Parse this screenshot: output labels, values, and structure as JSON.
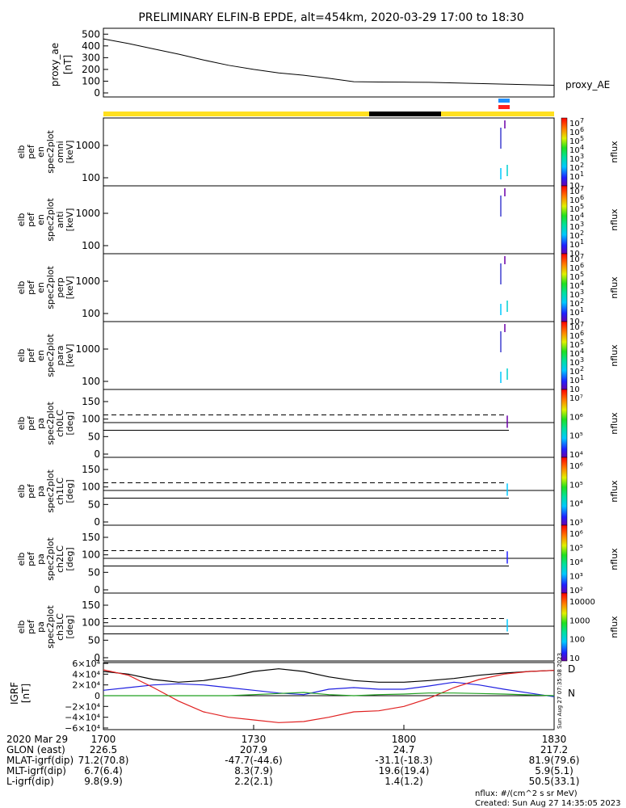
{
  "title": "PRELIMINARY ELFIN-B EPDE, alt=454km, 2020-03-29 17:00 to 18:30",
  "ae_panel": {
    "ylabel": [
      "proxy_ae",
      "[nT]"
    ],
    "yticks": [
      "500",
      "400",
      "300",
      "200",
      "100",
      "0"
    ],
    "legend": "proxy_AE"
  },
  "flags_bar": {
    "base_color": "#ffe020",
    "night_color": "#000000",
    "marker_colors": [
      "#1e90ff",
      "#ff2020"
    ]
  },
  "spec_panels": [
    {
      "ylabel": [
        "elb",
        "pef",
        "en",
        "spec2plot",
        "omni",
        "[keV]"
      ],
      "yticks": [
        "1000",
        "100"
      ],
      "zlabel": "nflux"
    },
    {
      "ylabel": [
        "elb",
        "pef",
        "en",
        "spec2plot",
        "anti",
        "[keV]"
      ],
      "yticks": [
        "1000",
        "100"
      ],
      "zlabel": "nflux"
    },
    {
      "ylabel": [
        "elb",
        "pef",
        "en",
        "spec2plot",
        "perp",
        "[keV]"
      ],
      "yticks": [
        "1000",
        "100"
      ],
      "zlabel": "nflux"
    },
    {
      "ylabel": [
        "elb",
        "pef",
        "en",
        "spec2plot",
        "para",
        "[keV]"
      ],
      "yticks": [
        "1000",
        "100"
      ],
      "zlabel": "nflux"
    }
  ],
  "spec_colorbar_labels": [
    "10",
    "10",
    "10",
    "10",
    "10",
    "10",
    "10",
    "10"
  ],
  "spec_colorbar_exps": [
    "7",
    "6",
    "5",
    "4",
    "3",
    "2",
    "1",
    ""
  ],
  "pa_panels": [
    {
      "ylabel": [
        "elb",
        "pef",
        "pa",
        "spec2plot",
        "ch0LC",
        "[deg]"
      ],
      "yticks": [
        "150",
        "100",
        "50",
        "0"
      ],
      "cb": [
        "10⁷",
        "10⁶",
        "10⁵",
        "10⁴"
      ],
      "zlabel": "nflux"
    },
    {
      "ylabel": [
        "elb",
        "pef",
        "pa",
        "spec2plot",
        "ch1LC",
        "[deg]"
      ],
      "yticks": [
        "150",
        "100",
        "50",
        "0"
      ],
      "cb": [
        "10⁶",
        "10⁵",
        "10⁴",
        "10³"
      ],
      "zlabel": "nflux"
    },
    {
      "ylabel": [
        "elb",
        "pef",
        "pa",
        "spec2plot",
        "ch2LC",
        "[deg]"
      ],
      "yticks": [
        "150",
        "100",
        "50",
        "0"
      ],
      "cb": [
        "10⁶",
        "10⁵",
        "10⁴",
        "10³",
        "10²"
      ],
      "zlabel": "nflux"
    },
    {
      "ylabel": [
        "elb",
        "pef",
        "pa",
        "spec2plot",
        "ch3LC",
        "[deg]"
      ],
      "yticks": [
        "150",
        "100",
        "50",
        "0"
      ],
      "cb": [
        "10000",
        "1000",
        "100",
        "10"
      ],
      "zlabel": "nflux"
    }
  ],
  "igrf_panel": {
    "ylabel": [
      "IGRF",
      "[nT]"
    ],
    "yticks": [
      "6×10⁴",
      "4×10⁴",
      "2×10⁴",
      "0",
      "−2×10⁴",
      "−4×10⁴",
      "−6×10⁴"
    ],
    "legend": [
      {
        "label": "D",
        "color": "#e02020"
      },
      {
        "label": "N",
        "color": "#20a020"
      }
    ],
    "stamp": "Sun Aug 27 07:35:08 2023"
  },
  "chart_data": [
    {
      "type": "line",
      "title": "PRELIMINARY ELFIN-B EPDE, alt=454km, 2020-03-29 17:00 to 18:30",
      "ylabel": "proxy_ae [nT]",
      "ylim": [
        0,
        550
      ],
      "x_minutes": [
        0,
        5,
        10,
        15,
        20,
        25,
        30,
        35,
        40,
        45,
        50,
        55,
        60,
        65,
        70,
        75,
        80,
        85,
        90
      ],
      "series": [
        {
          "name": "proxy_AE",
          "values": [
            460,
            420,
            375,
            330,
            280,
            235,
            200,
            170,
            150,
            125,
            95,
            93,
            92,
            90,
            85,
            80,
            75,
            70,
            65
          ]
        }
      ]
    },
    {
      "type": "line",
      "ylabel": "IGRF [nT]",
      "ylim": [
        -60000,
        60000
      ],
      "x_minutes": [
        0,
        5,
        10,
        15,
        20,
        25,
        30,
        35,
        40,
        45,
        50,
        55,
        60,
        65,
        70,
        75,
        80,
        85,
        90
      ],
      "series": [
        {
          "name": "total",
          "color": "#000000",
          "values": [
            45000,
            40000,
            30000,
            25000,
            28000,
            35000,
            45000,
            50000,
            45000,
            35000,
            28000,
            25000,
            25000,
            28000,
            32000,
            38000,
            42000,
            45000,
            47000
          ]
        },
        {
          "name": "",
          "color": "#2020e0",
          "values": [
            10000,
            15000,
            20000,
            22000,
            20000,
            15000,
            10000,
            5000,
            2000,
            12000,
            15000,
            12000,
            12000,
            18000,
            25000,
            20000,
            12000,
            5000,
            -2000
          ]
        },
        {
          "name": "D",
          "color": "#e02020",
          "values": [
            48000,
            38000,
            15000,
            -10000,
            -30000,
            -40000,
            -45000,
            -50000,
            -48000,
            -40000,
            -30000,
            -28000,
            -20000,
            -5000,
            15000,
            30000,
            40000,
            45000,
            47000
          ]
        },
        {
          "name": "N",
          "color": "#20a020",
          "values": [
            0,
            0,
            0,
            0,
            0,
            0,
            2000,
            4000,
            6000,
            2000,
            0,
            2000,
            3000,
            5000,
            5000,
            4000,
            3000,
            1500,
            0
          ]
        }
      ]
    }
  ],
  "x_axis": {
    "row_labels": [
      "2020 Mar 29",
      "GLON (east)",
      "MLAT-igrf(dip)",
      "MLT-igrf(dip)",
      "L-igrf(dip)"
    ],
    "columns": [
      {
        "values": [
          "1700",
          "226.5",
          "71.2(70.8)",
          "6.7(6.4)",
          "9.8(9.9)"
        ]
      },
      {
        "values": [
          "1730",
          "207.9",
          "-47.7(-44.6)",
          "8.3(7.9)",
          "2.2(2.1)"
        ]
      },
      {
        "values": [
          "1800",
          "24.7",
          "-31.1(-18.3)",
          "19.6(19.4)",
          "1.4(1.2)"
        ]
      },
      {
        "values": [
          "1830",
          "217.2",
          "81.9(79.6)",
          "5.9(5.1)",
          "50.5(33.1)"
        ]
      }
    ]
  },
  "footer": {
    "units": "nflux: #/(cm^2 s sr MeV)",
    "created": "Created: Sun Aug 27 14:35:05 2023"
  }
}
